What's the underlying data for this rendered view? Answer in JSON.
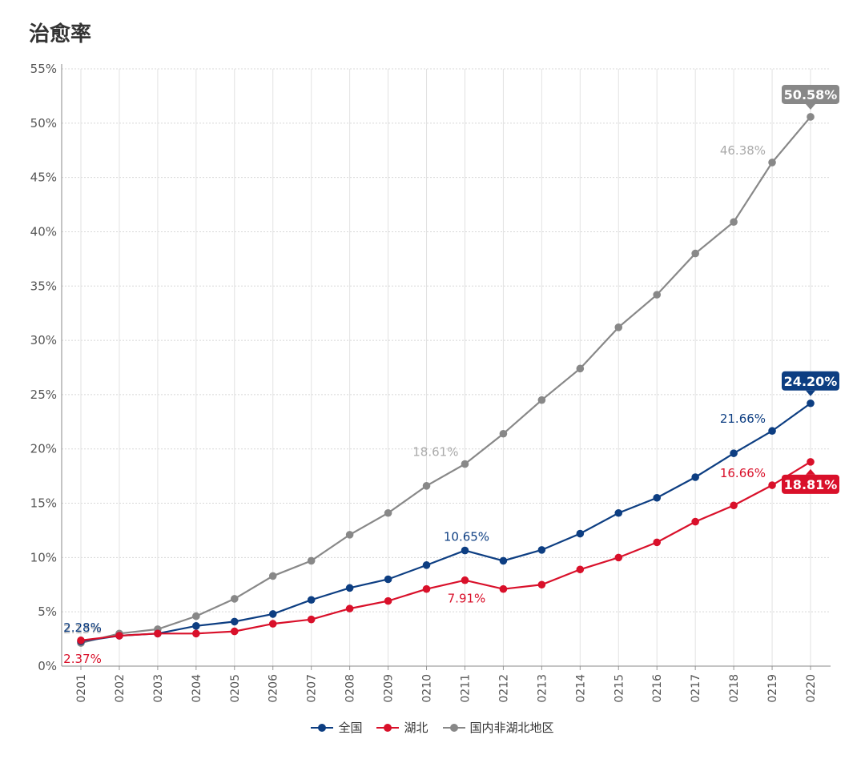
{
  "chart_data": {
    "type": "line",
    "title": "治愈率",
    "xlabel": "",
    "ylabel": "",
    "ylim": [
      0,
      55
    ],
    "yticks": [
      "0%",
      "5%",
      "10%",
      "15%",
      "20%",
      "25%",
      "30%",
      "35%",
      "40%",
      "45%",
      "50%",
      "55%"
    ],
    "categories": [
      "0201",
      "0202",
      "0203",
      "0204",
      "0205",
      "0206",
      "0207",
      "0208",
      "0209",
      "0210",
      "0211",
      "0212",
      "0213",
      "0214",
      "0215",
      "0216",
      "0217",
      "0218",
      "0219",
      "0220"
    ],
    "series": [
      {
        "name": "国内非湖北地区",
        "color": "#888888",
        "values": [
          2.13,
          3.0,
          3.4,
          4.6,
          6.2,
          8.3,
          9.7,
          12.1,
          14.1,
          16.6,
          18.61,
          21.4,
          24.5,
          27.4,
          31.2,
          34.2,
          38.0,
          40.9,
          46.38,
          50.58
        ],
        "labels": [
          {
            "index": 0,
            "text": "2.13%",
            "pos": "above"
          },
          {
            "index": 10,
            "text": "18.61%",
            "pos": "above-left"
          },
          {
            "index": 18,
            "text": "46.38%",
            "pos": "above-left"
          },
          {
            "index": 19,
            "text": "50.58%",
            "pos": "badge-above"
          }
        ]
      },
      {
        "name": "全国",
        "color": "#0d3e82",
        "values": [
          2.28,
          2.8,
          3.0,
          3.7,
          4.1,
          4.8,
          6.1,
          7.2,
          8.0,
          9.3,
          10.65,
          9.7,
          10.7,
          12.2,
          14.1,
          15.5,
          17.4,
          19.6,
          21.66,
          24.2
        ],
        "labels": [
          {
            "index": 0,
            "text": "2.28%",
            "pos": "above"
          },
          {
            "index": 10,
            "text": "10.65%",
            "pos": "above"
          },
          {
            "index": 18,
            "text": "21.66%",
            "pos": "above-left"
          },
          {
            "index": 19,
            "text": "24.20%",
            "pos": "badge-above"
          }
        ]
      },
      {
        "name": "湖北",
        "color": "#d9102a",
        "values": [
          2.37,
          2.8,
          3.0,
          3.0,
          3.2,
          3.9,
          4.3,
          5.3,
          6.0,
          7.1,
          7.91,
          7.1,
          7.5,
          8.9,
          10.0,
          11.4,
          13.3,
          14.8,
          16.66,
          18.81
        ],
        "labels": [
          {
            "index": 0,
            "text": "2.37%",
            "pos": "below"
          },
          {
            "index": 10,
            "text": "7.91%",
            "pos": "below"
          },
          {
            "index": 18,
            "text": "16.66%",
            "pos": "above-left"
          },
          {
            "index": 19,
            "text": "18.81%",
            "pos": "badge-below"
          }
        ]
      }
    ],
    "legend": [
      "全国",
      "湖北",
      "国内非湖北地区"
    ],
    "legend_position": "bottom-center",
    "grid": true
  }
}
